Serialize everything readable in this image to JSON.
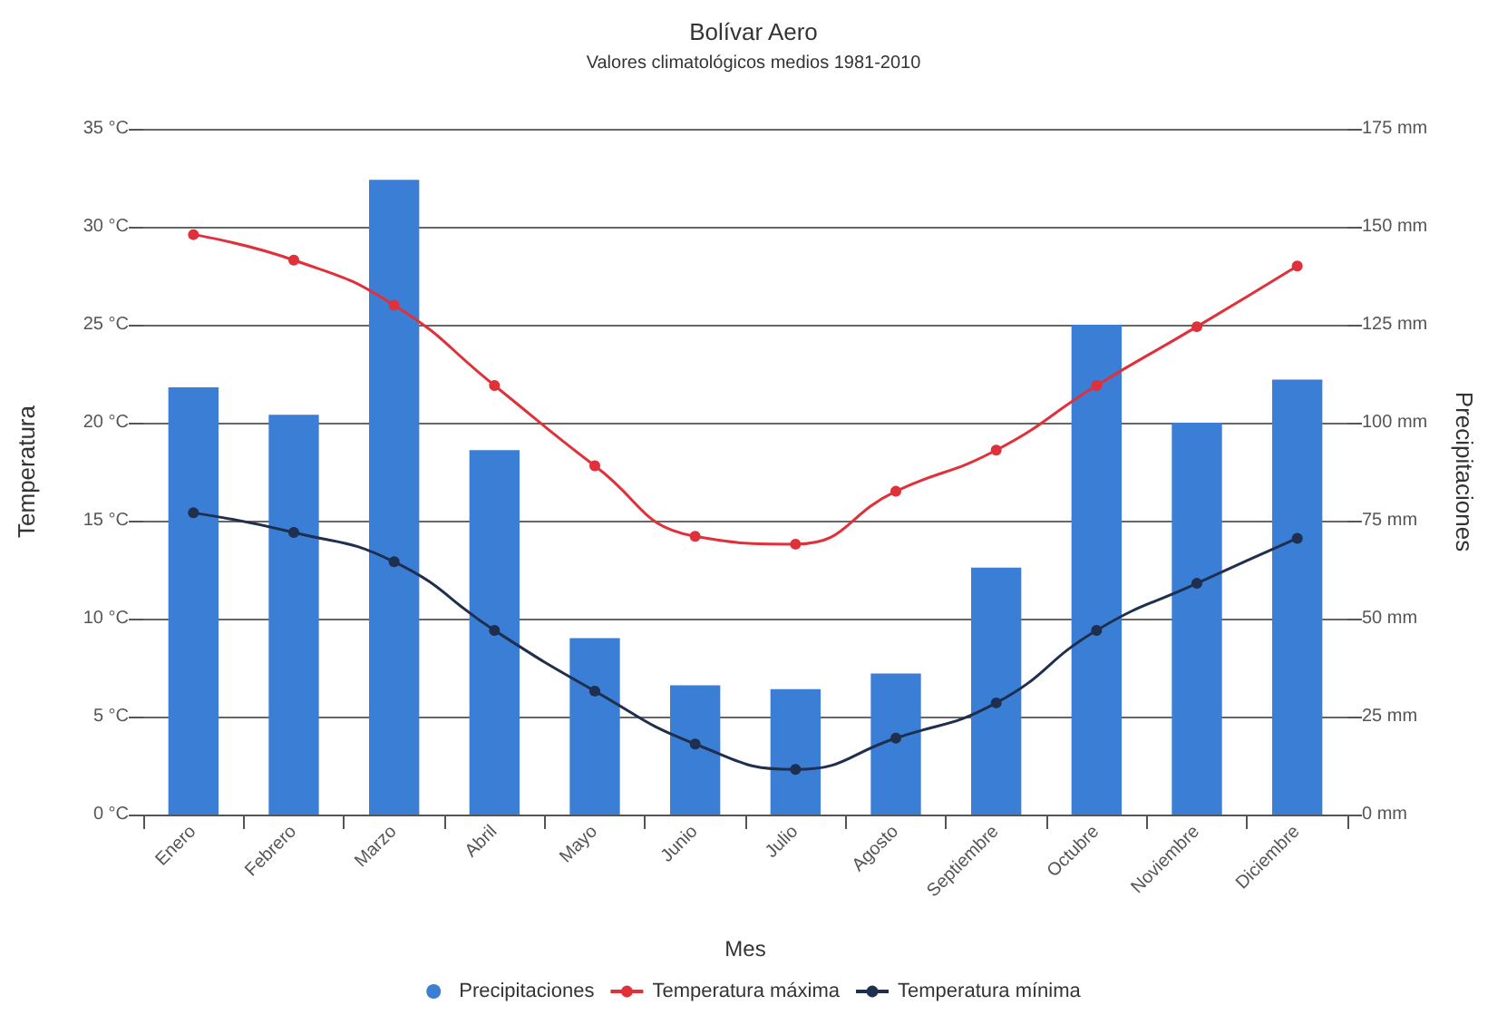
{
  "chart_data": {
    "type": "bar",
    "title": "Bolívar Aero",
    "subtitle": "Valores climatológicos medios 1981-2010",
    "xlabel": "Mes",
    "ylabel": "Temperatura",
    "y2label": "Precipitaciones",
    "categories": [
      "Enero",
      "Febrero",
      "Marzo",
      "Abril",
      "Mayo",
      "Junio",
      "Julio",
      "Agosto",
      "Septiembre",
      "Octubre",
      "Noviembre",
      "Diciembre"
    ],
    "series": [
      {
        "name": "Precipitaciones",
        "axis": "y2",
        "color": "#3a7fd5",
        "values": [
          109,
          102,
          162,
          93,
          45,
          33,
          32,
          36,
          63,
          125,
          100,
          111
        ]
      },
      {
        "name": "Temperatura máxima",
        "type": "line",
        "color": "#e0303a",
        "values": [
          29.6,
          28.3,
          26.0,
          21.9,
          17.8,
          14.2,
          13.8,
          16.5,
          18.6,
          21.9,
          24.9,
          28.0
        ]
      },
      {
        "name": "Temperatura mínima",
        "type": "line",
        "color": "#1f2f4f",
        "values": [
          15.4,
          14.4,
          12.9,
          9.4,
          6.3,
          3.6,
          2.3,
          3.9,
          5.7,
          9.4,
          11.8,
          14.1
        ]
      }
    ],
    "ylim": [
      0,
      35
    ],
    "yticks": [
      {
        "value": 0,
        "label": "0 °C"
      },
      {
        "value": 5,
        "label": "5 °C"
      },
      {
        "value": 10,
        "label": "10 °C"
      },
      {
        "value": 15,
        "label": "15 °C"
      },
      {
        "value": 20,
        "label": "20 °C"
      },
      {
        "value": 25,
        "label": "25 °C"
      },
      {
        "value": 30,
        "label": "30 °C"
      },
      {
        "value": 35,
        "label": "35 °C"
      }
    ],
    "y2lim": [
      0,
      175
    ],
    "y2ticks": [
      {
        "value": 0,
        "label": "0 mm"
      },
      {
        "value": 25,
        "label": "25 mm"
      },
      {
        "value": 50,
        "label": "50 mm"
      },
      {
        "value": 75,
        "label": "75 mm"
      },
      {
        "value": 100,
        "label": "100 mm"
      },
      {
        "value": 125,
        "label": "125 mm"
      },
      {
        "value": 150,
        "label": "150 mm"
      },
      {
        "value": 175,
        "label": "175 mm"
      }
    ],
    "grid": "y",
    "legend": "bottom",
    "marker": "circle"
  }
}
